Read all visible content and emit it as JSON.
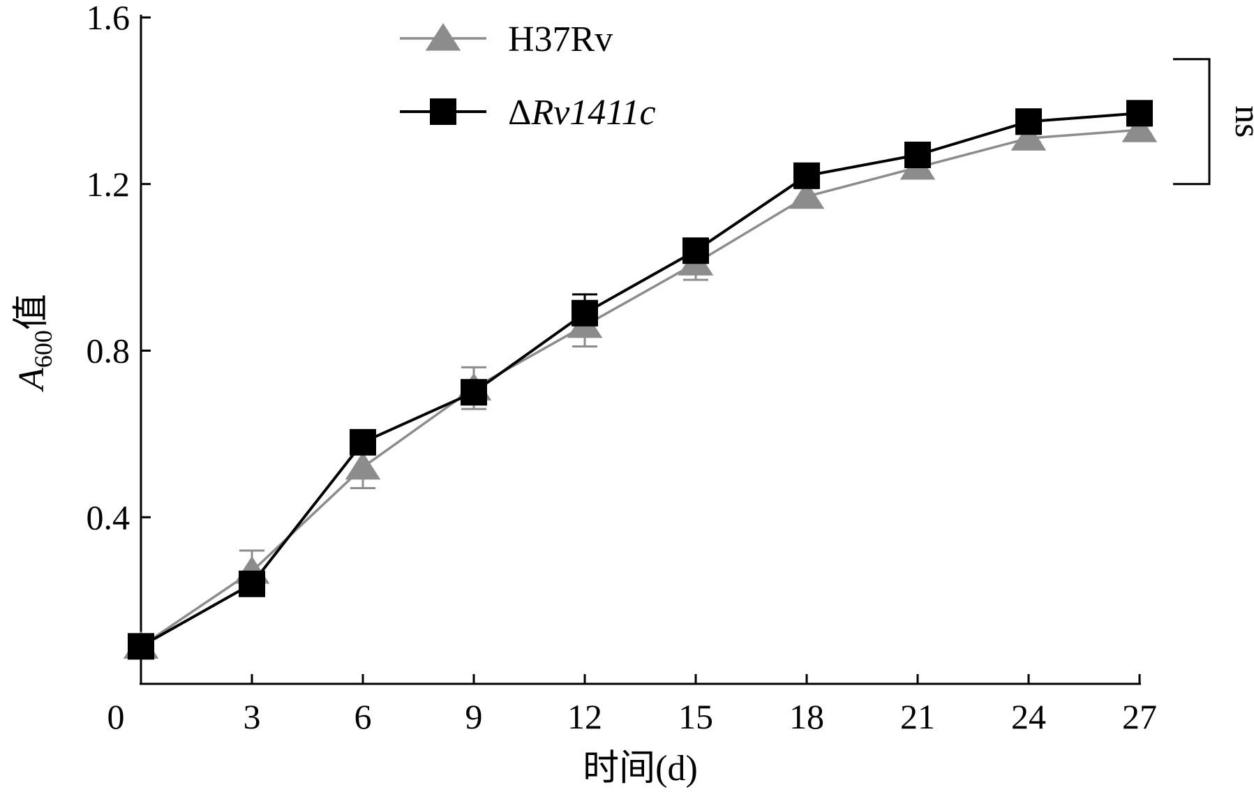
{
  "chart_data": {
    "type": "line",
    "title": "",
    "xlabel": "时间(d)",
    "ylabel": {
      "main": "A",
      "sub": "600",
      "suffix": "值"
    },
    "xlim": [
      0,
      27
    ],
    "ylim": [
      0,
      1.6
    ],
    "x_ticks": [
      0,
      3,
      6,
      9,
      12,
      15,
      18,
      21,
      24,
      27
    ],
    "y_ticks": [
      0.4,
      0.8,
      1.2,
      1.6
    ],
    "y_tick_labels": [
      "0.4",
      "0.8",
      "1.2",
      "1.6"
    ],
    "grid": false,
    "legend_position": "top-center",
    "x": [
      0,
      3,
      6,
      9,
      12,
      15,
      18,
      21,
      24,
      27
    ],
    "series": [
      {
        "name": "H37Rv",
        "name_parts": [
          {
            "text": "H37Rv",
            "italic": false
          }
        ],
        "marker": "triangle",
        "color": "#8c8c8c",
        "values": [
          0.09,
          0.27,
          0.52,
          0.71,
          0.86,
          1.01,
          1.17,
          1.24,
          1.31,
          1.33
        ],
        "errors": [
          0.0,
          0.05,
          0.05,
          0.05,
          0.05,
          0.04,
          0.02,
          0.01,
          0.01,
          0.01
        ]
      },
      {
        "name": "ΔRv1411c",
        "name_parts": [
          {
            "text": "Δ",
            "italic": false
          },
          {
            "text": "Rv1411c",
            "italic": true
          }
        ],
        "marker": "square",
        "color": "#000000",
        "values": [
          0.09,
          0.24,
          0.58,
          0.7,
          0.89,
          1.04,
          1.22,
          1.27,
          1.35,
          1.37
        ],
        "errors": [
          0.0,
          0.0,
          0.0,
          0.0,
          0.045,
          0.0,
          0.0,
          0.0,
          0.0,
          0.0
        ]
      }
    ],
    "annotation": {
      "text": "ns",
      "range": [
        1.2,
        1.5
      ]
    }
  }
}
